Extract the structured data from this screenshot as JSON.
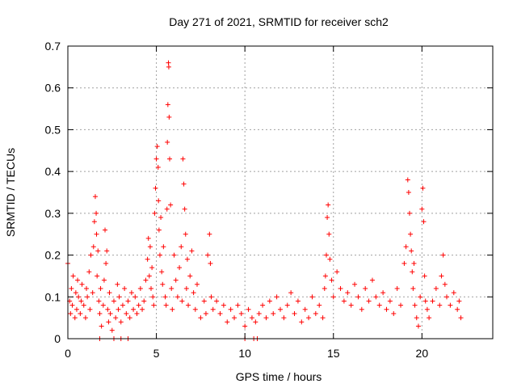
{
  "chart_data": {
    "type": "scatter",
    "title": "Day 271 of 2021, SRMTID for receiver sch2",
    "xlabel": "GPS time / hours",
    "ylabel": "SRMTID / TECUs",
    "xlim": [
      0,
      24
    ],
    "ylim": [
      0,
      0.7
    ],
    "x_ticks": [
      0,
      5,
      10,
      15,
      20
    ],
    "x_tick_labels": [
      "0",
      "5",
      "10",
      "15",
      "20"
    ],
    "y_ticks": [
      0,
      0.1,
      0.2,
      0.3,
      0.4,
      0.5,
      0.6,
      0.7
    ],
    "y_tick_labels": [
      "0",
      "0.1",
      "0.2",
      "0.3",
      "0.4",
      "0.5",
      "0.6",
      "0.7"
    ],
    "grid": true,
    "marker": "+",
    "color": "#ff0000",
    "series": [
      {
        "name": "sch2",
        "x": [
          0.0,
          0.1,
          0.15,
          0.2,
          0.25,
          0.3,
          0.4,
          0.45,
          0.5,
          0.55,
          0.6,
          0.7,
          0.75,
          0.8,
          0.9,
          1.0,
          1.05,
          1.1,
          1.2,
          1.25,
          1.3,
          1.4,
          1.45,
          1.5,
          1.55,
          1.6,
          1.62,
          1.65,
          1.7,
          1.75,
          1.8,
          1.85,
          1.9,
          2.0,
          2.05,
          2.1,
          2.15,
          2.2,
          2.25,
          2.3,
          2.35,
          2.4,
          2.5,
          2.6,
          2.7,
          2.8,
          2.85,
          2.9,
          3.0,
          3.1,
          3.2,
          3.3,
          3.4,
          3.5,
          3.6,
          3.7,
          3.8,
          3.9,
          4.0,
          4.1,
          4.2,
          4.3,
          4.4,
          4.5,
          4.55,
          4.6,
          4.65,
          4.7,
          4.75,
          4.8,
          4.85,
          4.9,
          4.95,
          5.0,
          5.05,
          5.1,
          5.12,
          5.15,
          5.2,
          5.25,
          5.3,
          5.35,
          5.4,
          5.5,
          5.55,
          5.6,
          5.62,
          5.65,
          5.68,
          5.7,
          5.72,
          5.75,
          5.8,
          5.85,
          5.9,
          6.0,
          6.1,
          6.2,
          6.3,
          6.4,
          6.45,
          6.5,
          6.55,
          6.6,
          6.65,
          6.7,
          6.75,
          6.8,
          6.9,
          7.0,
          7.1,
          7.2,
          7.3,
          7.5,
          7.7,
          7.8,
          7.9,
          8.0,
          8.05,
          8.1,
          8.2,
          8.4,
          8.6,
          8.8,
          9.0,
          9.2,
          9.4,
          9.6,
          9.8,
          10.0,
          10.2,
          10.4,
          10.6,
          10.8,
          11.0,
          11.2,
          11.4,
          11.6,
          11.8,
          12.0,
          12.2,
          12.4,
          12.6,
          12.8,
          13.0,
          13.2,
          13.4,
          13.6,
          13.8,
          14.0,
          14.2,
          14.4,
          14.5,
          14.55,
          14.6,
          14.65,
          14.7,
          14.75,
          14.8,
          14.9,
          15.0,
          15.2,
          15.4,
          15.6,
          15.8,
          16.0,
          16.2,
          16.4,
          16.6,
          16.8,
          17.0,
          17.2,
          17.4,
          17.6,
          17.8,
          18.0,
          18.2,
          18.4,
          18.6,
          18.8,
          19.0,
          19.1,
          19.2,
          19.25,
          19.3,
          19.35,
          19.4,
          19.45,
          19.5,
          19.55,
          19.6,
          19.7,
          19.8,
          19.9,
          20.0,
          20.05,
          20.1,
          20.15,
          20.2,
          20.3,
          20.4,
          20.6,
          20.8,
          21.0,
          21.1,
          21.2,
          21.3,
          21.4,
          21.6,
          21.8,
          22.0,
          22.1,
          22.2
        ],
        "y": [
          0.18,
          0.09,
          0.06,
          0.12,
          0.08,
          0.15,
          0.05,
          0.11,
          0.07,
          0.14,
          0.1,
          0.06,
          0.09,
          0.13,
          0.08,
          0.05,
          0.12,
          0.1,
          0.16,
          0.07,
          0.2,
          0.11,
          0.22,
          0.28,
          0.34,
          0.3,
          0.25,
          0.15,
          0.21,
          0.09,
          0.06,
          0.12,
          0.03,
          0.08,
          0.14,
          0.26,
          0.18,
          0.21,
          0.07,
          0.04,
          0.11,
          0.06,
          0.02,
          0.09,
          0.05,
          0.13,
          0.07,
          0.1,
          0.04,
          0.08,
          0.12,
          0.06,
          0.09,
          0.05,
          0.11,
          0.07,
          0.1,
          0.06,
          0.08,
          0.12,
          0.07,
          0.09,
          0.14,
          0.19,
          0.24,
          0.15,
          0.22,
          0.12,
          0.17,
          0.1,
          0.08,
          0.3,
          0.36,
          0.43,
          0.46,
          0.41,
          0.33,
          0.26,
          0.2,
          0.29,
          0.16,
          0.13,
          0.22,
          0.1,
          0.08,
          0.31,
          0.47,
          0.56,
          0.66,
          0.65,
          0.53,
          0.43,
          0.32,
          0.12,
          0.07,
          0.2,
          0.14,
          0.1,
          0.17,
          0.22,
          0.09,
          0.43,
          0.37,
          0.31,
          0.25,
          0.12,
          0.19,
          0.08,
          0.15,
          0.21,
          0.11,
          0.07,
          0.13,
          0.05,
          0.09,
          0.06,
          0.2,
          0.25,
          0.18,
          0.1,
          0.07,
          0.09,
          0.06,
          0.08,
          0.04,
          0.07,
          0.05,
          0.08,
          0.06,
          0.03,
          0.07,
          0.05,
          0.04,
          0.06,
          0.08,
          0.05,
          0.09,
          0.06,
          0.1,
          0.07,
          0.05,
          0.08,
          0.11,
          0.06,
          0.09,
          0.04,
          0.07,
          0.05,
          0.1,
          0.06,
          0.08,
          0.05,
          0.12,
          0.15,
          0.2,
          0.29,
          0.32,
          0.25,
          0.19,
          0.14,
          0.1,
          0.16,
          0.12,
          0.09,
          0.11,
          0.08,
          0.13,
          0.1,
          0.07,
          0.12,
          0.09,
          0.14,
          0.1,
          0.08,
          0.11,
          0.07,
          0.09,
          0.06,
          0.12,
          0.08,
          0.18,
          0.22,
          0.38,
          0.35,
          0.3,
          0.25,
          0.21,
          0.16,
          0.12,
          0.18,
          0.08,
          0.05,
          0.03,
          0.1,
          0.31,
          0.36,
          0.28,
          0.15,
          0.09,
          0.07,
          0.05,
          0.09,
          0.12,
          0.08,
          0.15,
          0.2,
          0.13,
          0.1,
          0.08,
          0.11,
          0.07,
          0.09,
          0.05
        ]
      }
    ],
    "zero_markers_x": [
      1.8,
      2.6,
      3.0,
      3.4,
      10.0,
      10.5,
      10.7
    ]
  }
}
